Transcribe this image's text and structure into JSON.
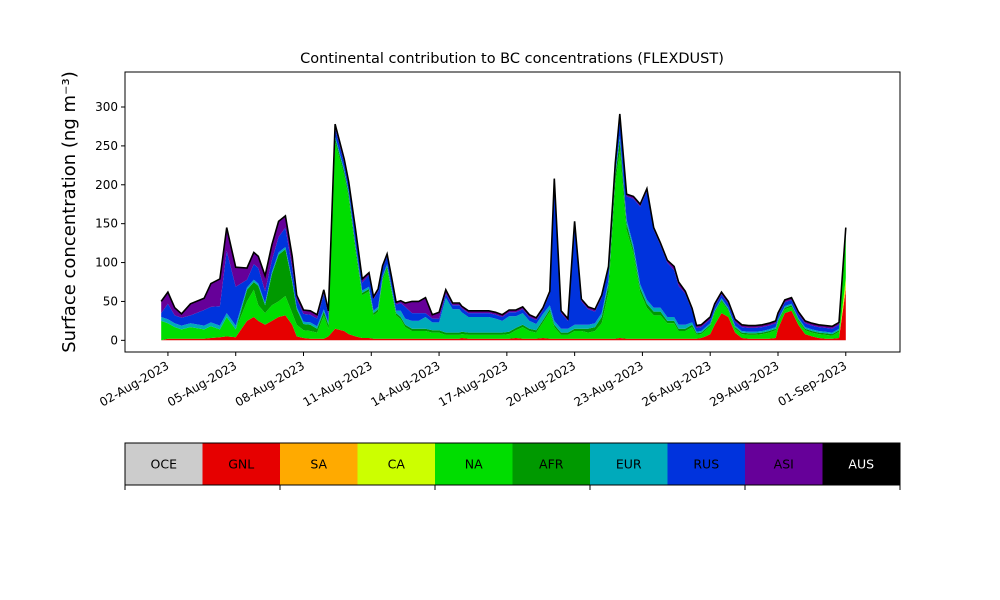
{
  "chart_data": {
    "type": "area",
    "stacked": true,
    "title": "Continental contribution to BC concentrations (FLEXDUST)",
    "ylabel": "Surface concentration (ng m⁻³)",
    "xlabel": "",
    "ylim": [
      -15,
      345
    ],
    "y_ticks": [
      0,
      50,
      100,
      150,
      200,
      250,
      300
    ],
    "x_tick_labels": [
      "02-Aug-2023",
      "05-Aug-2023",
      "08-Aug-2023",
      "11-Aug-2023",
      "14-Aug-2023",
      "17-Aug-2023",
      "20-Aug-2023",
      "23-Aug-2023",
      "26-Aug-2023",
      "29-Aug-2023",
      "01-Sep-2023"
    ],
    "x_tick_days": [
      2,
      5,
      8,
      11,
      14,
      17,
      20,
      23,
      26,
      29,
      32
    ],
    "xlim_days": [
      0.1,
      34.4
    ],
    "total_line_color": "#000000",
    "x_day": [
      1.7,
      2.0,
      2.3,
      2.6,
      3.0,
      3.6,
      3.9,
      4.3,
      4.6,
      5.0,
      5.5,
      5.8,
      6.0,
      6.3,
      6.6,
      6.9,
      7.2,
      7.5,
      7.7,
      8.0,
      8.3,
      8.6,
      8.9,
      9.1,
      9.4,
      9.8,
      10.0,
      10.3,
      10.6,
      10.9,
      11.1,
      11.3,
      11.5,
      11.7,
      11.9,
      12.1,
      12.3,
      12.5,
      12.8,
      13.1,
      13.4,
      13.7,
      14.0,
      14.3,
      14.6,
      14.9,
      15.0,
      15.3,
      15.6,
      15.9,
      16.2,
      16.5,
      16.8,
      17.1,
      17.4,
      17.7,
      18.0,
      18.3,
      18.6,
      18.9,
      19.1,
      19.4,
      19.7,
      20.0,
      20.3,
      20.6,
      20.9,
      21.2,
      21.5,
      21.8,
      22.0,
      22.3,
      22.6,
      22.9,
      23.2,
      23.5,
      23.8,
      24.1,
      24.4,
      24.6,
      24.9,
      25.2,
      25.4,
      25.6,
      25.8,
      26.0,
      26.2,
      26.5,
      26.8,
      27.1,
      27.4,
      27.7,
      28.0,
      28.3,
      28.6,
      28.9,
      29.0,
      29.3,
      29.6,
      29.9,
      30.2,
      30.5,
      30.8,
      31.1,
      31.4,
      31.7,
      32.0
    ],
    "series": [
      {
        "name": "OCE",
        "color": "#cccccc",
        "values": [
          0,
          0,
          0,
          0,
          0,
          0,
          0,
          0,
          0,
          0,
          0,
          0,
          0,
          0,
          0,
          0,
          0,
          0,
          0,
          0,
          0,
          0,
          0,
          0,
          0,
          0,
          0,
          0,
          0,
          0,
          0,
          0,
          0,
          0,
          0,
          0,
          0,
          0,
          0,
          0,
          0,
          0,
          0,
          0,
          0,
          0,
          0,
          0,
          0,
          0,
          0,
          0,
          0,
          0,
          0,
          0,
          0,
          0,
          0,
          0,
          0,
          0,
          0,
          0,
          0,
          0,
          0,
          0,
          0,
          0,
          0,
          0,
          0,
          0,
          0,
          0,
          0,
          0,
          0,
          0,
          0,
          0,
          0,
          0,
          0,
          0,
          0,
          0,
          0,
          0,
          0,
          0,
          0,
          0,
          0,
          0,
          0,
          0,
          0,
          0,
          0,
          0,
          0,
          0,
          0,
          0,
          0
        ]
      },
      {
        "name": "GNL",
        "color": "#e60000",
        "values": [
          0,
          2,
          2,
          2,
          2,
          2,
          3,
          4,
          5,
          4,
          25,
          30,
          25,
          20,
          25,
          30,
          32,
          20,
          5,
          3,
          2,
          2,
          2,
          5,
          15,
          12,
          8,
          5,
          3,
          3,
          2,
          2,
          2,
          2,
          2,
          2,
          2,
          2,
          2,
          2,
          2,
          2,
          2,
          2,
          2,
          2,
          3,
          2,
          2,
          2,
          2,
          2,
          2,
          2,
          3,
          2,
          2,
          2,
          3,
          2,
          2,
          2,
          2,
          2,
          2,
          2,
          2,
          2,
          2,
          2,
          3,
          2,
          2,
          2,
          2,
          2,
          2,
          2,
          2,
          2,
          2,
          2,
          2,
          3,
          5,
          8,
          20,
          35,
          30,
          10,
          3,
          2,
          2,
          2,
          2,
          3,
          15,
          35,
          38,
          20,
          8,
          5,
          3,
          2,
          2,
          3,
          65
        ]
      },
      {
        "name": "SA",
        "color": "#ffaa00",
        "values": [
          0,
          0,
          0,
          0,
          0,
          0,
          0,
          0,
          0,
          0,
          0,
          0,
          0,
          0,
          0,
          0,
          0,
          0,
          0,
          0,
          0,
          0,
          0,
          0,
          0,
          0,
          0,
          0,
          0,
          0,
          0,
          0,
          0,
          0,
          0,
          0,
          0,
          0,
          0,
          0,
          0,
          0,
          0,
          0,
          0,
          0,
          0,
          0,
          0,
          0,
          0,
          0,
          0,
          0,
          0,
          0,
          0,
          0,
          0,
          0,
          0,
          0,
          0,
          0,
          0,
          0,
          0,
          0,
          0,
          0,
          0,
          0,
          0,
          0,
          0,
          0,
          0,
          0,
          0,
          0,
          0,
          0,
          0,
          0,
          0,
          0,
          0,
          0,
          0,
          0,
          0,
          0,
          0,
          0,
          0,
          0,
          0,
          0,
          0,
          0,
          0,
          0,
          0,
          0,
          0,
          0,
          5
        ]
      },
      {
        "name": "CA",
        "color": "#ccff00",
        "values": [
          0,
          0,
          0,
          0,
          0,
          0,
          0,
          0,
          0,
          0,
          0,
          0,
          0,
          0,
          0,
          0,
          0,
          0,
          0,
          0,
          0,
          0,
          0,
          0,
          0,
          0,
          0,
          0,
          0,
          0,
          0,
          0,
          0,
          0,
          0,
          0,
          0,
          0,
          0,
          0,
          0,
          0,
          0,
          0,
          0,
          0,
          0,
          0,
          0,
          0,
          0,
          0,
          0,
          0,
          0,
          0,
          0,
          0,
          0,
          0,
          0,
          0,
          0,
          0,
          0,
          0,
          0,
          0,
          0,
          0,
          0,
          0,
          0,
          0,
          0,
          0,
          0,
          0,
          0,
          0,
          0,
          0,
          0,
          0,
          0,
          0,
          0,
          0,
          0,
          0,
          0,
          0,
          0,
          0,
          0,
          0,
          0,
          0,
          0,
          0,
          0,
          0,
          0,
          0,
          0,
          0,
          10
        ]
      },
      {
        "name": "NA",
        "color": "#00dd00",
        "values": [
          25,
          20,
          15,
          12,
          15,
          12,
          15,
          10,
          25,
          10,
          25,
          35,
          20,
          15,
          20,
          20,
          25,
          15,
          15,
          10,
          10,
          8,
          30,
          10,
          240,
          200,
          175,
          110,
          55,
          60,
          30,
          35,
          75,
          90,
          60,
          30,
          25,
          15,
          10,
          10,
          10,
          8,
          8,
          5,
          5,
          5,
          5,
          5,
          5,
          5,
          5,
          5,
          5,
          6,
          10,
          15,
          10,
          8,
          20,
          35,
          15,
          5,
          5,
          10,
          10,
          8,
          10,
          20,
          60,
          200,
          240,
          140,
          110,
          60,
          40,
          30,
          30,
          20,
          20,
          10,
          10,
          15,
          5,
          5,
          8,
          10,
          15,
          15,
          8,
          5,
          5,
          5,
          5,
          6,
          8,
          10,
          8,
          5,
          5,
          5,
          5,
          5,
          5,
          5,
          4,
          8,
          55
        ]
      },
      {
        "name": "AFR",
        "color": "#009900",
        "values": [
          0,
          0,
          0,
          0,
          0,
          0,
          0,
          0,
          0,
          0,
          15,
          10,
          25,
          10,
          40,
          60,
          60,
          40,
          20,
          8,
          8,
          5,
          5,
          5,
          5,
          5,
          5,
          5,
          3,
          3,
          3,
          3,
          3,
          3,
          3,
          3,
          3,
          3,
          3,
          3,
          3,
          3,
          3,
          3,
          3,
          3,
          3,
          3,
          3,
          3,
          3,
          3,
          3,
          3,
          3,
          3,
          3,
          3,
          3,
          3,
          3,
          3,
          3,
          3,
          3,
          5,
          5,
          8,
          10,
          10,
          15,
          8,
          5,
          5,
          5,
          5,
          5,
          3,
          3,
          3,
          3,
          3,
          2,
          2,
          2,
          2,
          2,
          2,
          2,
          2,
          2,
          2,
          2,
          2,
          2,
          2,
          2,
          2,
          2,
          2,
          2,
          2,
          2,
          2,
          2,
          2,
          0
        ]
      },
      {
        "name": "EUR",
        "color": "#00aabb",
        "values": [
          5,
          5,
          5,
          5,
          5,
          5,
          5,
          5,
          5,
          5,
          3,
          3,
          3,
          3,
          3,
          3,
          3,
          3,
          3,
          3,
          3,
          3,
          3,
          3,
          3,
          3,
          3,
          3,
          3,
          3,
          3,
          3,
          3,
          3,
          3,
          3,
          8,
          8,
          10,
          10,
          15,
          10,
          10,
          45,
          30,
          30,
          25,
          20,
          20,
          20,
          20,
          18,
          15,
          20,
          15,
          15,
          10,
          8,
          8,
          5,
          5,
          5,
          5,
          5,
          5,
          5,
          5,
          5,
          5,
          3,
          5,
          5,
          5,
          5,
          5,
          5,
          5,
          5,
          5,
          5,
          5,
          3,
          2,
          2,
          2,
          2,
          2,
          2,
          2,
          2,
          2,
          2,
          2,
          2,
          2,
          2,
          2,
          2,
          2,
          2,
          2,
          2,
          2,
          2,
          2,
          2,
          0
        ]
      },
      {
        "name": "RUS",
        "color": "#0033dd",
        "values": [
          5,
          20,
          10,
          10,
          10,
          20,
          20,
          25,
          80,
          50,
          10,
          20,
          20,
          15,
          15,
          20,
          25,
          15,
          10,
          10,
          10,
          10,
          20,
          10,
          10,
          8,
          8,
          15,
          10,
          15,
          15,
          20,
          10,
          10,
          10,
          8,
          10,
          15,
          10,
          10,
          5,
          5,
          5,
          5,
          5,
          5,
          5,
          5,
          5,
          5,
          5,
          5,
          5,
          5,
          5,
          5,
          5,
          5,
          5,
          15,
          180,
          20,
          10,
          130,
          30,
          20,
          15,
          20,
          15,
          10,
          25,
          30,
          60,
          100,
          140,
          100,
          80,
          70,
          60,
          50,
          40,
          15,
          5,
          5,
          5,
          5,
          5,
          5,
          5,
          5,
          5,
          5,
          5,
          5,
          5,
          5,
          5,
          5,
          5,
          5,
          5,
          5,
          5,
          5,
          5,
          5,
          10
        ]
      },
      {
        "name": "ASI",
        "color": "#660099",
        "values": [
          15,
          15,
          10,
          5,
          15,
          15,
          30,
          35,
          30,
          25,
          15,
          15,
          15,
          20,
          20,
          20,
          15,
          15,
          5,
          5,
          5,
          5,
          5,
          5,
          5,
          5,
          5,
          5,
          5,
          3,
          3,
          3,
          3,
          3,
          3,
          3,
          3,
          5,
          15,
          15,
          20,
          5,
          8,
          5,
          3,
          3,
          3,
          3,
          3,
          3,
          3,
          3,
          3,
          3,
          3,
          3,
          3,
          3,
          3,
          3,
          3,
          3,
          3,
          3,
          3,
          3,
          3,
          3,
          3,
          3,
          3,
          3,
          3,
          3,
          3,
          3,
          3,
          3,
          5,
          5,
          3,
          3,
          3,
          3,
          3,
          3,
          3,
          3,
          3,
          3,
          3,
          3,
          3,
          3,
          3,
          3,
          3,
          3,
          3,
          3,
          3,
          3,
          3,
          3,
          3,
          3,
          0
        ]
      },
      {
        "name": "AUS",
        "color": "#000000",
        "values": [
          0,
          0,
          0,
          0,
          0,
          0,
          0,
          0,
          0,
          0,
          0,
          0,
          0,
          0,
          0,
          0,
          0,
          0,
          0,
          0,
          0,
          0,
          0,
          0,
          0,
          0,
          0,
          0,
          0,
          0,
          0,
          0,
          0,
          0,
          0,
          0,
          0,
          0,
          0,
          0,
          0,
          0,
          0,
          0,
          0,
          0,
          0,
          0,
          0,
          0,
          0,
          0,
          0,
          0,
          0,
          0,
          0,
          0,
          0,
          0,
          0,
          0,
          0,
          0,
          0,
          0,
          0,
          0,
          0,
          0,
          0,
          0,
          0,
          0,
          0,
          0,
          0,
          0,
          0,
          0,
          0,
          0,
          0,
          0,
          0,
          0,
          0,
          0,
          0,
          0,
          0,
          0,
          0,
          0,
          0,
          0,
          0,
          0,
          0,
          0,
          0,
          0,
          0,
          0,
          0,
          0,
          0
        ]
      }
    ]
  }
}
